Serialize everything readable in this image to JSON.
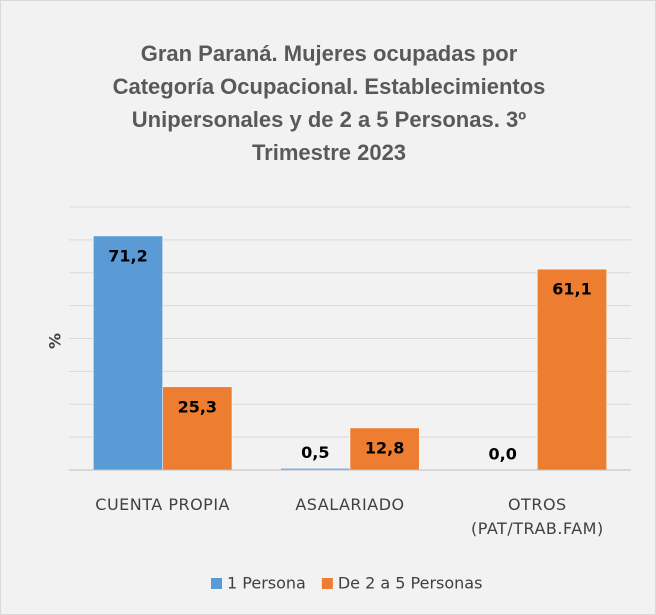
{
  "chart_data": {
    "type": "bar",
    "title": "Gran Paraná.  Mujeres ocupadas por Categoría Ocupacional. Establecimientos Unipersonales y de 2 a 5 Personas. 3º Trimestre 2023",
    "ylabel": "%",
    "categories": [
      "CUENTA PROPIA",
      "ASALARIADO",
      "OTROS (PAT/TRAB.FAM)"
    ],
    "series": [
      {
        "name": "1 Persona",
        "color": "#5b9bd5",
        "values": [
          71.2,
          0.5,
          0.0
        ],
        "value_labels": [
          "71,2",
          "0,5",
          "0,0"
        ]
      },
      {
        "name": "De 2 a 5 Personas",
        "color": "#ed7d31",
        "values": [
          25.3,
          12.8,
          61.1
        ],
        "value_labels": [
          "25,3",
          "12,8",
          "61,1"
        ]
      }
    ],
    "ylim": [
      0,
      80
    ],
    "yticks": [
      0,
      10,
      20,
      30,
      40,
      50,
      60,
      70,
      80
    ],
    "grid": true,
    "legend": "bottom"
  }
}
